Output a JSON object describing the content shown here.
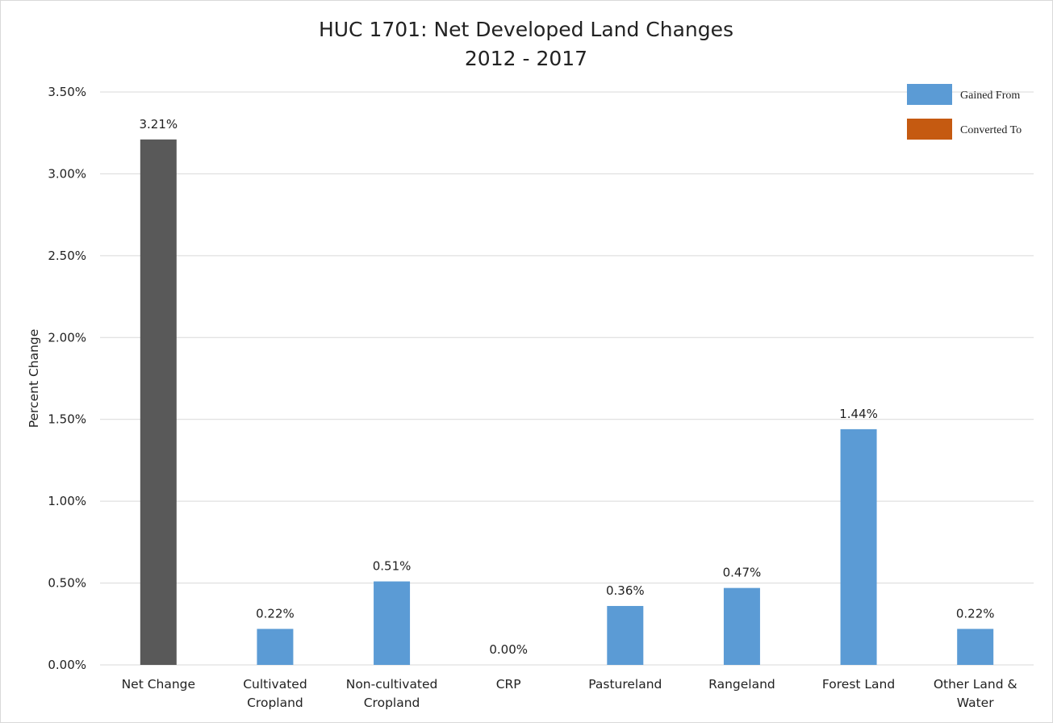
{
  "chart_data": {
    "type": "bar",
    "title": "HUC 1701: Net Developed Land Changes",
    "subtitle": "2012 - 2017",
    "xlabel": "",
    "ylabel": "Percent Change",
    "ylim": [
      0,
      3.5
    ],
    "yticks": [
      0,
      0.5,
      1.0,
      1.5,
      2.0,
      2.5,
      3.0,
      3.5
    ],
    "ytick_labels": [
      "0.00%",
      "0.50%",
      "1.00%",
      "1.50%",
      "2.00%",
      "2.50%",
      "3.00%",
      "3.50%"
    ],
    "grid": true,
    "legend_position": "top-right",
    "categories": [
      [
        "Net Change"
      ],
      [
        "Cultivated",
        "Cropland"
      ],
      [
        "Non-cultivated",
        "Cropland"
      ],
      [
        "CRP"
      ],
      [
        "Pastureland"
      ],
      [
        "Rangeland"
      ],
      [
        "Forest Land"
      ],
      [
        "Other Land &",
        "Water"
      ]
    ],
    "values": [
      3.21,
      0.22,
      0.51,
      0.0,
      0.36,
      0.47,
      1.44,
      0.22
    ],
    "value_labels": [
      "3.21%",
      "0.22%",
      "0.51%",
      "0.00%",
      "0.36%",
      "0.47%",
      "1.44%",
      "0.22%"
    ],
    "bar_colors": [
      "#595959",
      "#5b9bd5",
      "#5b9bd5",
      "#5b9bd5",
      "#5b9bd5",
      "#5b9bd5",
      "#5b9bd5",
      "#5b9bd5"
    ],
    "legend": [
      {
        "name": "Gained From",
        "color": "#5b9bd5"
      },
      {
        "name": "Converted To",
        "color": "#c55a11"
      }
    ]
  }
}
